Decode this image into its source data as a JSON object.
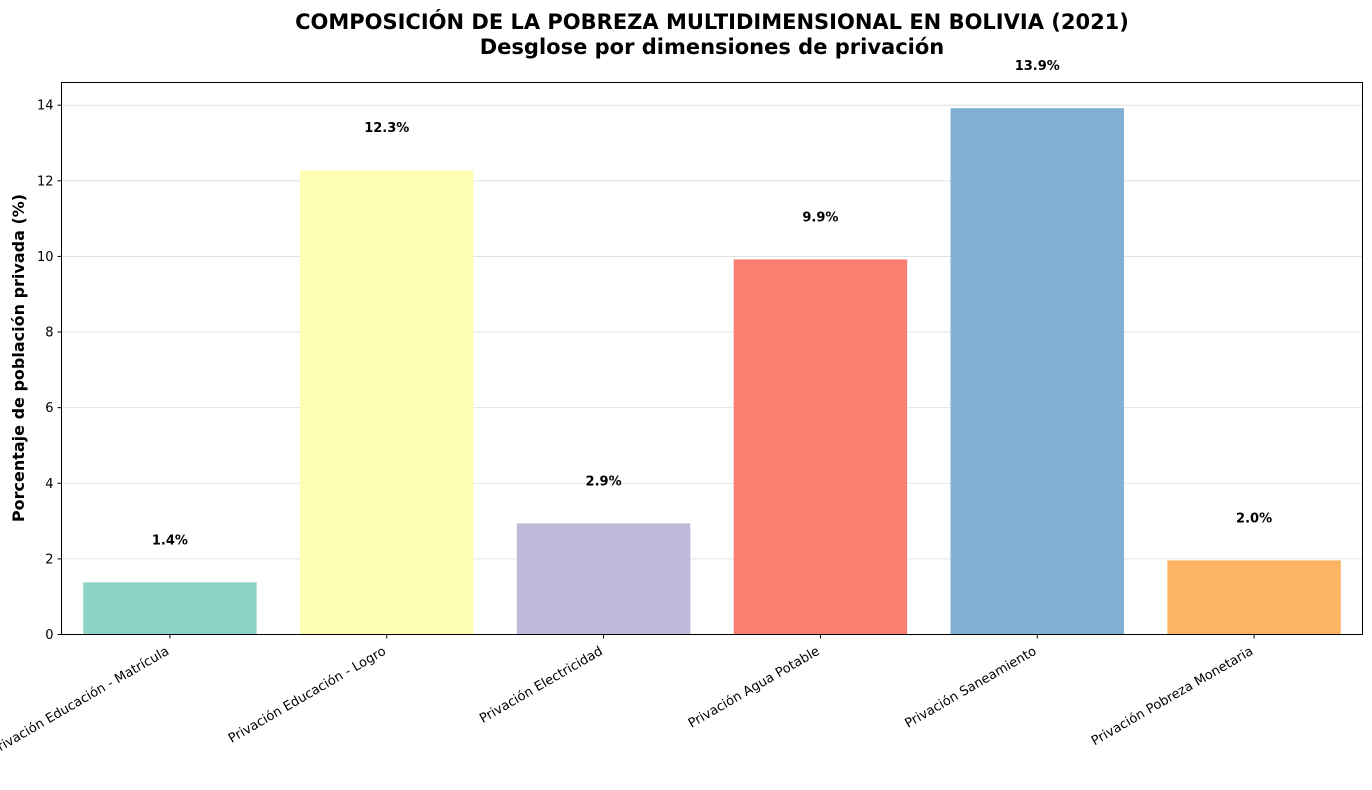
{
  "chart_data": {
    "type": "bar",
    "title": "COMPOSICIÓN DE LA POBREZA MULTIDIMENSIONAL EN BOLIVIA (2021)",
    "subtitle": "Desglose por dimensiones de privación",
    "xlabel": "",
    "ylabel": "Porcentaje de población privada (%)",
    "ylim": [
      0,
      14.6
    ],
    "yticks": [
      0,
      2,
      4,
      6,
      8,
      10,
      12,
      14
    ],
    "grid": "horizontal",
    "categories": [
      "Privación Educación - Matrícula",
      "Privación Educación - Logro",
      "Privación Electricidad",
      "Privación Agua Potable",
      "Privación Saneamiento",
      "Privación Pobreza Monetaria"
    ],
    "values": [
      1.38,
      12.28,
      2.94,
      9.92,
      13.92,
      1.96
    ],
    "data_labels": [
      "1.4%",
      "12.3%",
      "2.9%",
      "9.9%",
      "13.9%",
      "2.0%"
    ],
    "colors": [
      "#8dd3c7",
      "#ffffb3",
      "#bebada",
      "#fb8072",
      "#80b1d3",
      "#fdb462"
    ]
  }
}
